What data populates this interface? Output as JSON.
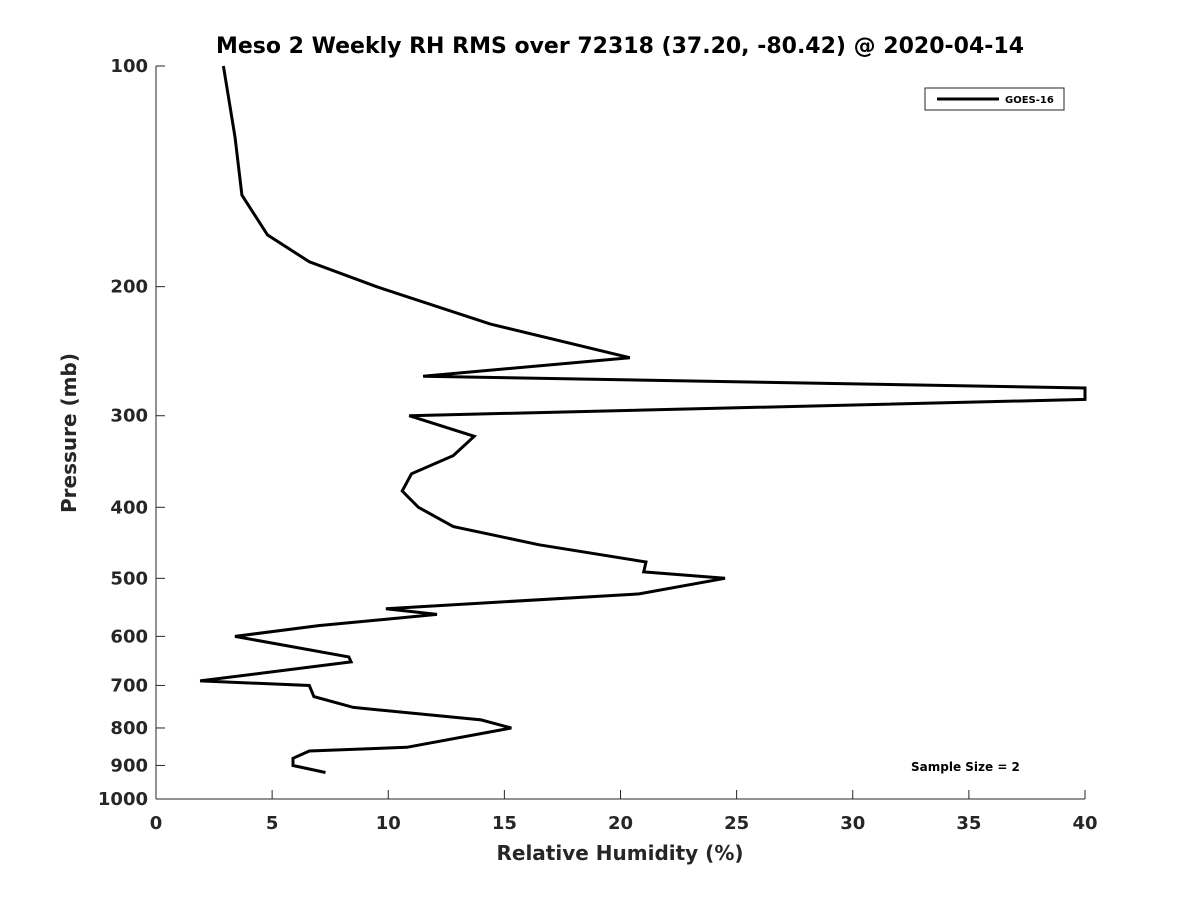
{
  "chart_data": {
    "type": "line",
    "title": "Meso 2 Weekly RH RMS over 72318 (37.20, -80.42) @ 2020-04-14",
    "xlabel": "Relative Humidity (%)",
    "ylabel": "Pressure (mb)",
    "xlim": [
      0,
      40
    ],
    "ylim": [
      100,
      1000
    ],
    "y_scale": "log",
    "y_reversed": true,
    "grid": false,
    "legend_position": "top-right",
    "xticks": [
      0,
      5,
      10,
      15,
      20,
      25,
      30,
      35,
      40
    ],
    "yticks": [
      100,
      200,
      300,
      400,
      500,
      600,
      700,
      800,
      900,
      1000
    ],
    "annotation": "Sample Size = 2",
    "series": [
      {
        "name": "GOES-16",
        "color": "#000000",
        "points": [
          [
            2.9,
            100
          ],
          [
            3.4,
            125
          ],
          [
            3.7,
            150
          ],
          [
            4.8,
            170
          ],
          [
            6.6,
            185
          ],
          [
            9.5,
            200
          ],
          [
            14.4,
            225
          ],
          [
            20.4,
            250
          ],
          [
            11.5,
            265
          ],
          [
            40.0,
            275
          ],
          [
            40.0,
            285
          ],
          [
            10.9,
            300
          ],
          [
            13.7,
            320
          ],
          [
            12.8,
            340
          ],
          [
            11.0,
            360
          ],
          [
            10.6,
            380
          ],
          [
            11.3,
            400
          ],
          [
            12.8,
            425
          ],
          [
            16.5,
            450
          ],
          [
            21.1,
            475
          ],
          [
            21.0,
            490
          ],
          [
            24.5,
            500
          ],
          [
            20.8,
            525
          ],
          [
            9.9,
            550
          ],
          [
            12.1,
            560
          ],
          [
            7.0,
            580
          ],
          [
            3.4,
            600
          ],
          [
            8.3,
            640
          ],
          [
            8.4,
            650
          ],
          [
            1.9,
            690
          ],
          [
            6.6,
            700
          ],
          [
            6.8,
            725
          ],
          [
            8.5,
            750
          ],
          [
            14.0,
            780
          ],
          [
            15.3,
            800
          ],
          [
            10.8,
            850
          ],
          [
            6.6,
            860
          ],
          [
            5.9,
            880
          ],
          [
            5.9,
            900
          ],
          [
            7.3,
            920
          ]
        ]
      }
    ]
  }
}
